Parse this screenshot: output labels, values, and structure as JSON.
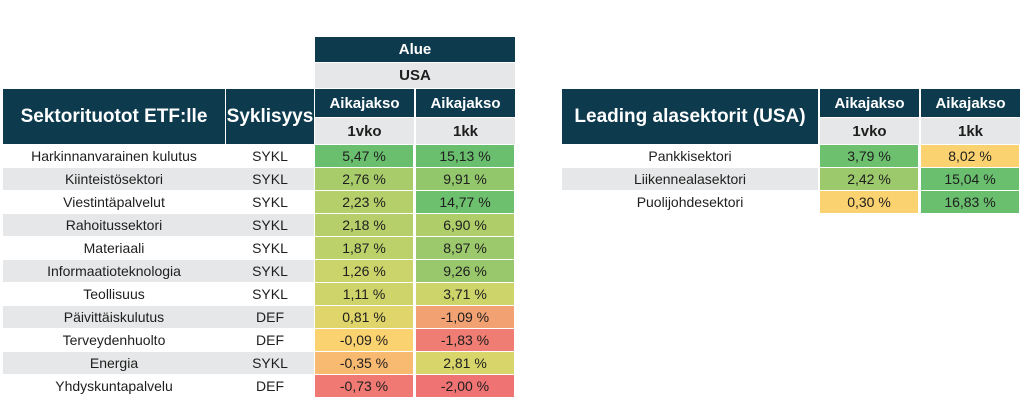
{
  "left_table": {
    "region_label": "Alue",
    "region_value": "USA",
    "title": "Sektorituotot ETF:lle",
    "cyclical_header": "Syklisyys",
    "period_header_1": "Aikajakso",
    "period_header_2": "Aikajakso",
    "period_1": "1vko",
    "period_2": "1kk",
    "rows": [
      {
        "sector": "Harkinnanvarainen kulutus",
        "type": "SYKL",
        "w1": "5,47 %",
        "m1": "15,13 %",
        "w1_color": "#6abf6e",
        "m1_color": "#6abf6e"
      },
      {
        "sector": "Kiinteistösektori",
        "type": "SYKL",
        "w1": "2,76 %",
        "m1": "9,91 %",
        "w1_color": "#a9cc6b",
        "m1_color": "#93c76c"
      },
      {
        "sector": "Viestintäpalvelut",
        "type": "SYKL",
        "w1": "2,23 %",
        "m1": "14,77 %",
        "w1_color": "#b5cf6a",
        "m1_color": "#6dc06e"
      },
      {
        "sector": "Rahoitussektori",
        "type": "SYKL",
        "w1": "2,18 %",
        "m1": "6,90 %",
        "w1_color": "#b6cf6a",
        "m1_color": "#afce6a"
      },
      {
        "sector": "Materiaali",
        "type": "SYKL",
        "w1": "1,87 %",
        "m1": "8,97 %",
        "w1_color": "#bdd16a",
        "m1_color": "#9cc96b"
      },
      {
        "sector": "Informaatioteknologia",
        "type": "SYKL",
        "w1": "1,26 %",
        "m1": "9,26 %",
        "w1_color": "#cbd46a",
        "m1_color": "#99c86c"
      },
      {
        "sector": "Teollisuus",
        "type": "SYKL",
        "w1": "1,11 %",
        "m1": "3,71 %",
        "w1_color": "#ced469",
        "m1_color": "#cdd46a"
      },
      {
        "sector": "Päivittäiskulutus",
        "type": "DEF",
        "w1": "0,81 %",
        "m1": "-1,09 %",
        "w1_color": "#e0d56a",
        "m1_color": "#f2a173"
      },
      {
        "sector": "Terveydenhuolto",
        "type": "DEF",
        "w1": "-0,09 %",
        "m1": "-1,83 %",
        "w1_color": "#fbd270",
        "m1_color": "#f07d73"
      },
      {
        "sector": "Energia",
        "type": "SYKL",
        "w1": "-0,35 %",
        "m1": "2,81 %",
        "w1_color": "#f8b971",
        "m1_color": "#d8d66a"
      },
      {
        "sector": "Yhdyskuntapalvelu",
        "type": "DEF",
        "w1": "-0,73 %",
        "m1": "-2,00 %",
        "w1_color": "#f07a73",
        "m1_color": "#ef7373"
      }
    ]
  },
  "right_table": {
    "title": "Leading alasektorit (USA)",
    "period_header_1": "Aikajakso",
    "period_header_2": "Aikajakso",
    "period_1": "1vko",
    "period_2": "1kk",
    "rows": [
      {
        "sector": "Pankkisektori",
        "w1": "3,79 %",
        "m1": "8,02 %",
        "w1_color": "#6dc06e",
        "m1_color": "#fbd270"
      },
      {
        "sector": "Liikennealasektori",
        "w1": "2,42 %",
        "m1": "15,04 %",
        "w1_color": "#9cc96b",
        "m1_color": "#6abf6e"
      },
      {
        "sector": "Puolijohdesektori",
        "w1": "0,30 %",
        "m1": "16,83 %",
        "w1_color": "#fbd270",
        "m1_color": "#6abf6e"
      }
    ]
  },
  "colors": {
    "header_bg": "#0e3a4e",
    "subheader_bg": "#e6e7e8",
    "stripe_bg": "#e6e7e8"
  }
}
